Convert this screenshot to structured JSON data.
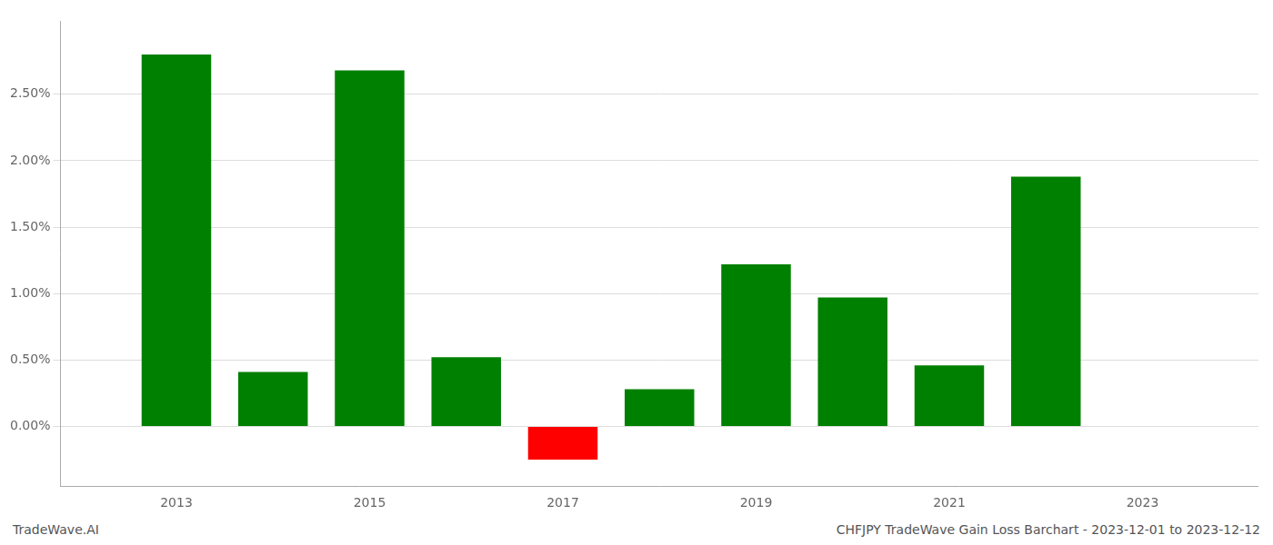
{
  "chart_data": {
    "type": "bar",
    "title": "CHFJPY TradeWave Gain Loss Barchart - 2023-12-01 to 2023-12-12",
    "annotations": [
      "TradeWave.AI"
    ],
    "x": [
      2013,
      2014,
      2015,
      2016,
      2017,
      2018,
      2019,
      2020,
      2021,
      2022
    ],
    "values": [
      2.8,
      0.41,
      2.68,
      0.52,
      -0.25,
      0.28,
      1.22,
      0.97,
      0.46,
      1.88
    ],
    "colors": [
      "#008000",
      "#008000",
      "#008000",
      "#008000",
      "#ff0000",
      "#008000",
      "#008000",
      "#008000",
      "#008000",
      "#008000"
    ],
    "xlim": [
      2011.8,
      2024.2
    ],
    "xticks": [
      2013,
      2015,
      2017,
      2019,
      2021,
      2023
    ],
    "ylim": [
      -0.45,
      3.05
    ],
    "yticks": [
      {
        "value": 0.0,
        "label": "0.00%"
      },
      {
        "value": 0.5,
        "label": "0.50%"
      },
      {
        "value": 1.0,
        "label": "1.00%"
      },
      {
        "value": 1.5,
        "label": "1.50%"
      },
      {
        "value": 2.0,
        "label": "2.00%"
      },
      {
        "value": 2.5,
        "label": "2.50%"
      }
    ],
    "grid": true
  }
}
